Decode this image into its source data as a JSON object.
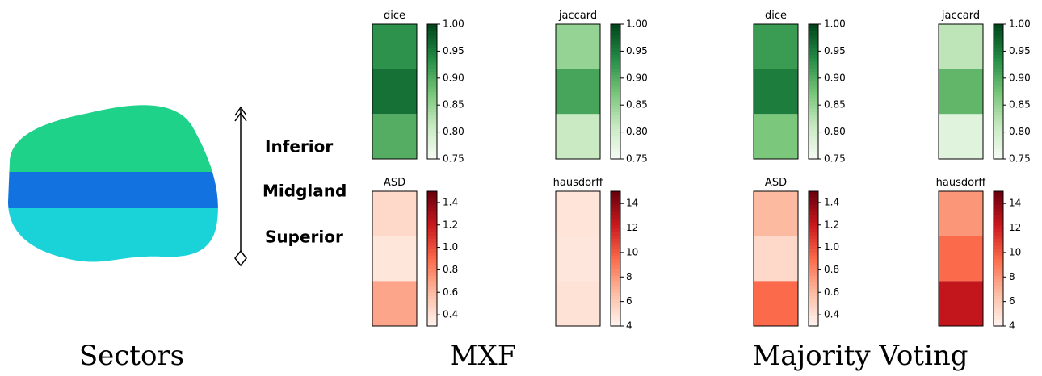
{
  "labels": {
    "sectors": [
      "Inferior",
      "Midgland",
      "Superior"
    ],
    "captions": [
      "Sectors",
      "MXF",
      "Majority Voting"
    ]
  },
  "chart_data": [
    {
      "type": "heatmap",
      "title": "dice",
      "colormap": "Greens",
      "values": [
        0.93,
        0.96,
        0.9
      ],
      "ylim": [
        0.75,
        1.0
      ],
      "yticks": [
        {
          "value": 0.75,
          "label": "0.75"
        },
        {
          "value": 0.8,
          "label": "0.80"
        },
        0.85,
        {
          "value": 0.9,
          "label": "0.90"
        },
        0.95,
        {
          "value": 1.0,
          "label": "1.00"
        }
      ]
    },
    {
      "type": "heatmap",
      "title": "jaccard",
      "colormap": "Greens",
      "values": [
        0.85,
        0.91,
        0.81
      ],
      "ylim": [
        0.75,
        1.0
      ],
      "yticks": [
        {
          "value": 0.75,
          "label": "0.75"
        },
        {
          "value": 0.8,
          "label": "0.80"
        },
        0.85,
        {
          "value": 0.9,
          "label": "0.90"
        },
        0.95,
        {
          "value": 1.0,
          "label": "1.00"
        }
      ]
    },
    {
      "type": "heatmap",
      "title": "dice",
      "colormap": "Greens",
      "values": [
        0.92,
        0.95,
        0.87
      ],
      "ylim": [
        0.75,
        1.0
      ],
      "yticks": [
        {
          "value": 0.75,
          "label": "0.75"
        },
        {
          "value": 0.8,
          "label": "0.80"
        },
        0.85,
        {
          "value": 0.9,
          "label": "0.90"
        },
        0.95,
        {
          "value": 1.0,
          "label": "1.00"
        }
      ]
    },
    {
      "type": "heatmap",
      "title": "jaccard",
      "colormap": "Greens",
      "values": [
        0.82,
        0.89,
        0.78
      ],
      "ylim": [
        0.75,
        1.0
      ],
      "yticks": [
        {
          "value": 0.75,
          "label": "0.75"
        },
        {
          "value": 0.8,
          "label": "0.80"
        },
        0.85,
        {
          "value": 0.9,
          "label": "0.90"
        },
        0.95,
        {
          "value": 1.0,
          "label": "1.00"
        }
      ]
    },
    {
      "type": "heatmap",
      "title": "ASD",
      "colormap": "Reds",
      "values": [
        0.45,
        0.38,
        0.68
      ],
      "ylim": [
        0.3,
        1.5
      ],
      "yticks": [
        0.4,
        0.6,
        0.8,
        {
          "value": 1.0,
          "label": "1.0"
        },
        1.2,
        1.4
      ]
    },
    {
      "type": "heatmap",
      "title": "hausdorff",
      "colormap": "Reds",
      "values": [
        4.8,
        4.7,
        4.9
      ],
      "ylim": [
        4,
        15
      ],
      "yticks": [
        4,
        6,
        8,
        10,
        12,
        14
      ]
    },
    {
      "type": "heatmap",
      "title": "ASD",
      "colormap": "Reds",
      "values": [
        0.6,
        0.45,
        0.9
      ],
      "ylim": [
        0.3,
        1.5
      ],
      "yticks": [
        0.4,
        0.6,
        0.8,
        {
          "value": 1.0,
          "label": "1.0"
        },
        1.2,
        1.4
      ]
    },
    {
      "type": "heatmap",
      "title": "hausdorff",
      "colormap": "Reds",
      "values": [
        8,
        9.5,
        12.5
      ],
      "ylim": [
        4,
        15
      ],
      "yticks": [
        4,
        6,
        8,
        10,
        12,
        14
      ]
    }
  ]
}
